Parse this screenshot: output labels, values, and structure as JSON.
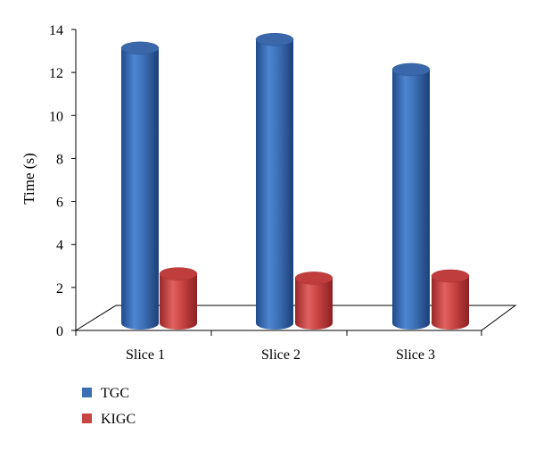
{
  "chart_data": {
    "type": "bar",
    "categories": [
      "Slice 1",
      "Slice 2",
      "Slice 3"
    ],
    "series": [
      {
        "name": "TGC",
        "values": [
          13.3,
          13.7,
          12.3
        ],
        "color": "#3d6fb5"
      },
      {
        "name": "KIGC",
        "values": [
          2.8,
          2.6,
          2.7
        ],
        "color": "#c94444"
      }
    ],
    "ylabel": "Time (s)",
    "ylim": [
      0,
      14
    ],
    "yticks": [
      "0",
      "2",
      "4",
      "6",
      "8",
      "10",
      "12",
      "14"
    ],
    "legend_position": "bottom-left",
    "grid": false,
    "style": "3d-cylinder"
  }
}
